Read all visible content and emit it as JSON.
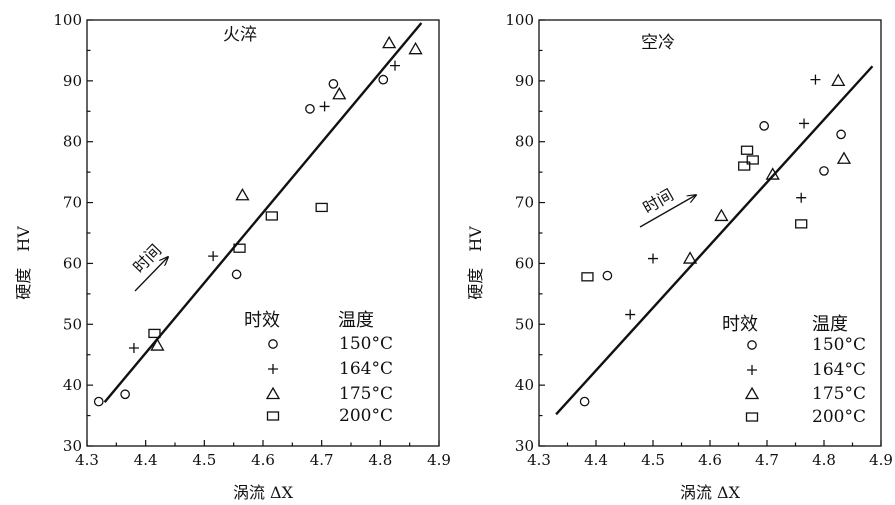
{
  "legend_labels": {
    "time_label": "时效",
    "temp_label": "温度"
  },
  "chart_data": [
    {
      "type": "scatter",
      "title": "火淬",
      "xlabel": "涡流 ΔX",
      "ylabel": "硬度　HV",
      "xlim": [
        4.3,
        4.9
      ],
      "ylim": [
        30,
        100
      ],
      "xticks": [
        "4.3",
        "4.4",
        "4.5",
        "4.6",
        "4.7",
        "4.8",
        "4.9"
      ],
      "yticks": [
        "30",
        "40",
        "50",
        "60",
        "70",
        "80",
        "90",
        "100"
      ],
      "annotation": "时间",
      "legend_placement": "bottom-right",
      "fit_line": {
        "x": [
          4.33,
          4.87
        ],
        "y": [
          37.2,
          99.5
        ]
      },
      "series": [
        {
          "name": "150°C",
          "marker": "circle",
          "x": [
            4.32,
            4.365,
            4.555,
            4.68,
            4.72,
            4.805
          ],
          "y": [
            37.3,
            38.5,
            58.2,
            85.4,
            89.5,
            90.2
          ]
        },
        {
          "name": "164°C",
          "marker": "plus",
          "x": [
            4.38,
            4.515,
            4.705,
            4.825
          ],
          "y": [
            46.1,
            61.2,
            85.8,
            92.5
          ]
        },
        {
          "name": "175°C",
          "marker": "triangle",
          "x": [
            4.42,
            4.565,
            4.73,
            4.815,
            4.86
          ],
          "y": [
            46.5,
            71.2,
            87.8,
            96.2,
            95.2
          ]
        },
        {
          "name": "200°C",
          "marker": "square",
          "x": [
            4.415,
            4.56,
            4.615,
            4.7
          ],
          "y": [
            48.5,
            62.5,
            67.8,
            69.2
          ]
        }
      ]
    },
    {
      "type": "scatter",
      "title": "空冷",
      "xlabel": "涡流 ΔX",
      "ylabel": "硬度　HV",
      "xlim": [
        4.3,
        4.9
      ],
      "ylim": [
        30,
        100
      ],
      "xticks": [
        "4.3",
        "4.4",
        "4.5",
        "4.6",
        "4.7",
        "4.8",
        "4.9"
      ],
      "yticks": [
        "30",
        "40",
        "50",
        "60",
        "70",
        "80",
        "90",
        "100"
      ],
      "annotation": "时间",
      "legend_placement": "bottom-right",
      "fit_line": {
        "x": [
          4.33,
          4.885
        ],
        "y": [
          35.2,
          92.4
        ]
      },
      "series": [
        {
          "name": "150°C",
          "marker": "circle",
          "x": [
            4.38,
            4.42,
            4.695,
            4.8,
            4.83
          ],
          "y": [
            37.3,
            58.0,
            82.6,
            75.2,
            81.2
          ]
        },
        {
          "name": "164°C",
          "marker": "plus",
          "x": [
            4.46,
            4.5,
            4.76,
            4.765,
            4.785
          ],
          "y": [
            51.6,
            60.8,
            70.8,
            83.0,
            90.2
          ]
        },
        {
          "name": "175°C",
          "marker": "triangle",
          "x": [
            4.565,
            4.62,
            4.71,
            4.825,
            4.835
          ],
          "y": [
            60.8,
            67.8,
            74.6,
            90.0,
            77.2
          ]
        },
        {
          "name": "200°C",
          "marker": "square",
          "x": [
            4.385,
            4.66,
            4.665,
            4.675,
            4.76
          ],
          "y": [
            57.8,
            76.0,
            78.6,
            77.0,
            66.5
          ]
        }
      ]
    }
  ]
}
